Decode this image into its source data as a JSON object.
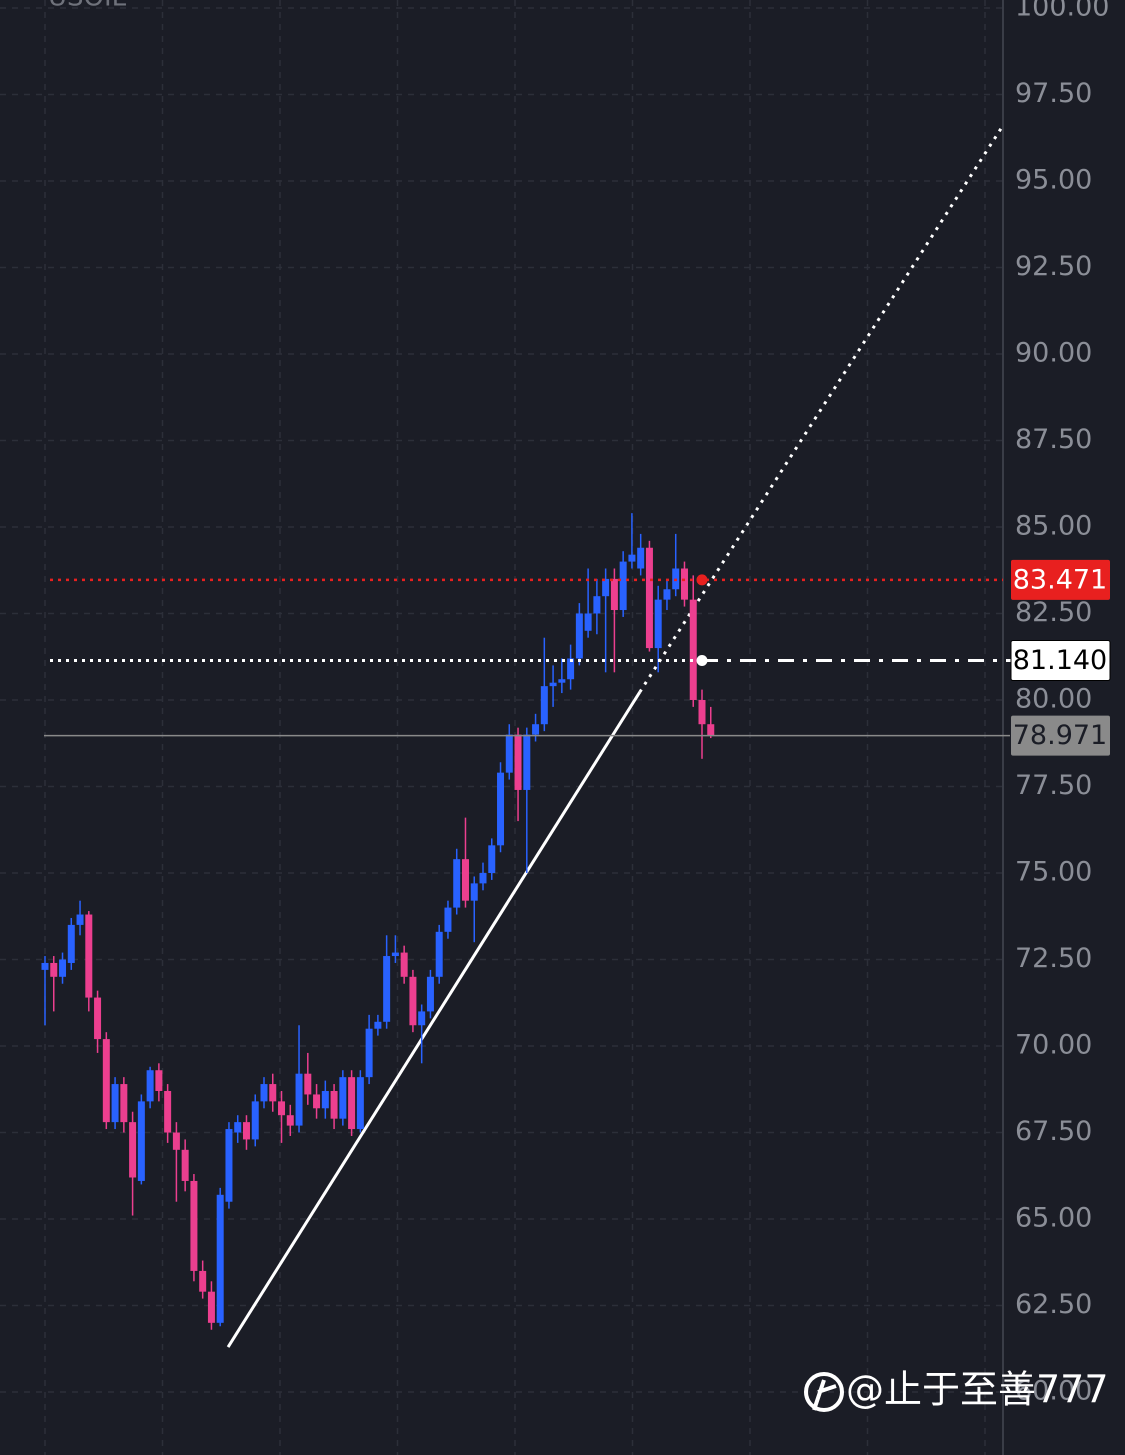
{
  "chart_data": {
    "type": "candlestick",
    "title": "USOIL",
    "watermark": "@止于至善777",
    "up_color": "#2962ff",
    "down_color": "#ec3f8f",
    "grid": true,
    "ylim": [
      58.18,
      100.23
    ],
    "yticks": [
      {
        "value": 60,
        "label": "60.00"
      },
      {
        "value": 62.5,
        "label": "62.50"
      },
      {
        "value": 65,
        "label": "65.00"
      },
      {
        "value": 67.5,
        "label": "67.50"
      },
      {
        "value": 70,
        "label": "70.00"
      },
      {
        "value": 72.5,
        "label": "72.50"
      },
      {
        "value": 75,
        "label": "75.00"
      },
      {
        "value": 77.5,
        "label": "77.50"
      },
      {
        "value": 80,
        "label": "80.00"
      },
      {
        "value": 82.5,
        "label": "82.50"
      },
      {
        "value": 85,
        "label": "85.00"
      },
      {
        "value": 87.5,
        "label": "87.50"
      },
      {
        "value": 90,
        "label": "90.00"
      },
      {
        "value": 92.5,
        "label": "92.50"
      },
      {
        "value": 95,
        "label": "95.00"
      },
      {
        "value": 97.5,
        "label": "97.50"
      },
      {
        "value": 100,
        "label": "100.00"
      }
    ],
    "price_lines": [
      {
        "value": 83.471,
        "label": "83.471",
        "color": "#e8201f"
      },
      {
        "value": 81.14,
        "label": "81.140",
        "color": "#ffffff"
      },
      {
        "value": 78.971,
        "label": "78.971",
        "color": "#8a8a8a"
      }
    ],
    "trendline": {
      "color": "#ffffff",
      "start": [
        20.9,
        61.3
      ],
      "solid_end": [
        67.9,
        80.23
      ],
      "end": [
        109.4,
        96.62
      ]
    },
    "candles": [
      [
        72.2,
        72.6,
        70.6,
        72.4
      ],
      [
        72.4,
        72.6,
        71.0,
        72.0
      ],
      [
        72.0,
        72.7,
        71.8,
        72.5
      ],
      [
        72.4,
        73.7,
        72.2,
        73.5
      ],
      [
        73.5,
        74.2,
        73.2,
        73.8
      ],
      [
        73.8,
        73.9,
        71.0,
        71.4
      ],
      [
        71.4,
        71.6,
        69.8,
        70.2
      ],
      [
        70.2,
        70.4,
        67.6,
        67.8
      ],
      [
        67.8,
        69.1,
        67.6,
        68.9
      ],
      [
        68.9,
        69.1,
        67.5,
        67.8
      ],
      [
        67.8,
        68.1,
        65.1,
        66.2
      ],
      [
        66.1,
        68.6,
        66.0,
        68.4
      ],
      [
        68.4,
        69.4,
        68.2,
        69.3
      ],
      [
        69.3,
        69.5,
        68.4,
        68.7
      ],
      [
        68.7,
        68.9,
        67.2,
        67.5
      ],
      [
        67.5,
        67.8,
        65.5,
        67.0
      ],
      [
        67.0,
        67.3,
        65.8,
        66.1
      ],
      [
        66.1,
        66.3,
        63.2,
        63.5
      ],
      [
        63.5,
        63.8,
        62.7,
        62.9
      ],
      [
        62.9,
        63.2,
        61.8,
        62.0
      ],
      [
        62.0,
        65.9,
        61.9,
        65.7
      ],
      [
        65.5,
        67.8,
        65.3,
        67.6
      ],
      [
        67.5,
        68.0,
        67.2,
        67.8
      ],
      [
        67.8,
        68.0,
        67.0,
        67.3
      ],
      [
        67.3,
        68.6,
        67.1,
        68.4
      ],
      [
        68.4,
        69.1,
        68.2,
        68.9
      ],
      [
        68.9,
        69.2,
        68.1,
        68.4
      ],
      [
        68.4,
        68.7,
        67.2,
        68.0
      ],
      [
        68.0,
        68.3,
        67.4,
        67.7
      ],
      [
        67.7,
        70.6,
        67.5,
        69.2
      ],
      [
        69.2,
        69.8,
        68.3,
        68.6
      ],
      [
        68.6,
        68.9,
        67.9,
        68.2
      ],
      [
        68.2,
        69.0,
        67.9,
        68.7
      ],
      [
        68.7,
        68.9,
        67.6,
        67.9
      ],
      [
        67.9,
        69.3,
        67.7,
        69.1
      ],
      [
        69.1,
        69.3,
        67.4,
        67.6
      ],
      [
        67.6,
        69.3,
        67.5,
        69.1
      ],
      [
        69.1,
        70.9,
        68.9,
        70.5
      ],
      [
        70.5,
        70.9,
        70.3,
        70.7
      ],
      [
        70.7,
        73.2,
        70.5,
        72.6
      ],
      [
        72.6,
        73.2,
        72.4,
        72.7
      ],
      [
        72.7,
        72.9,
        71.8,
        72.0
      ],
      [
        72.0,
        72.2,
        70.4,
        70.6
      ],
      [
        70.6,
        71.2,
        69.5,
        71.0
      ],
      [
        71.0,
        72.2,
        70.8,
        72.0
      ],
      [
        72.0,
        73.5,
        71.8,
        73.3
      ],
      [
        73.3,
        74.2,
        73.1,
        74.0
      ],
      [
        74.0,
        75.7,
        73.8,
        75.4
      ],
      [
        75.4,
        76.6,
        74.0,
        74.2
      ],
      [
        74.2,
        74.9,
        73.0,
        74.7
      ],
      [
        74.7,
        75.3,
        74.5,
        75.0
      ],
      [
        75.0,
        76.0,
        74.8,
        75.8
      ],
      [
        75.8,
        78.2,
        75.6,
        77.9
      ],
      [
        77.9,
        79.3,
        77.7,
        79.0
      ],
      [
        79.0,
        79.2,
        76.5,
        77.4
      ],
      [
        77.4,
        79.2,
        75.0,
        79.0
      ],
      [
        79.0,
        79.6,
        78.8,
        79.3
      ],
      [
        79.3,
        81.8,
        79.1,
        80.4
      ],
      [
        80.4,
        81.0,
        79.8,
        80.5
      ],
      [
        80.5,
        81.2,
        80.2,
        80.6
      ],
      [
        80.6,
        81.6,
        80.3,
        81.2
      ],
      [
        81.2,
        82.8,
        81.0,
        82.5
      ],
      [
        82.0,
        83.8,
        81.8,
        82.5
      ],
      [
        82.5,
        83.5,
        81.9,
        83.0
      ],
      [
        83.0,
        83.8,
        80.8,
        83.5
      ],
      [
        83.5,
        83.8,
        80.8,
        82.6
      ],
      [
        82.6,
        84.3,
        82.4,
        84.0
      ],
      [
        84.0,
        85.4,
        83.8,
        84.2
      ],
      [
        83.8,
        84.8,
        83.6,
        84.4
      ],
      [
        84.4,
        84.6,
        81.4,
        81.5
      ],
      [
        81.5,
        83.3,
        80.8,
        82.9
      ],
      [
        82.9,
        83.5,
        82.6,
        83.2
      ],
      [
        83.2,
        84.8,
        83.0,
        83.8
      ],
      [
        83.8,
        84.0,
        82.7,
        82.9
      ],
      [
        82.9,
        83.6,
        79.8,
        80.0
      ],
      [
        80.0,
        80.3,
        78.3,
        79.3
      ],
      [
        79.3,
        79.8,
        78.9,
        78.971
      ]
    ]
  }
}
